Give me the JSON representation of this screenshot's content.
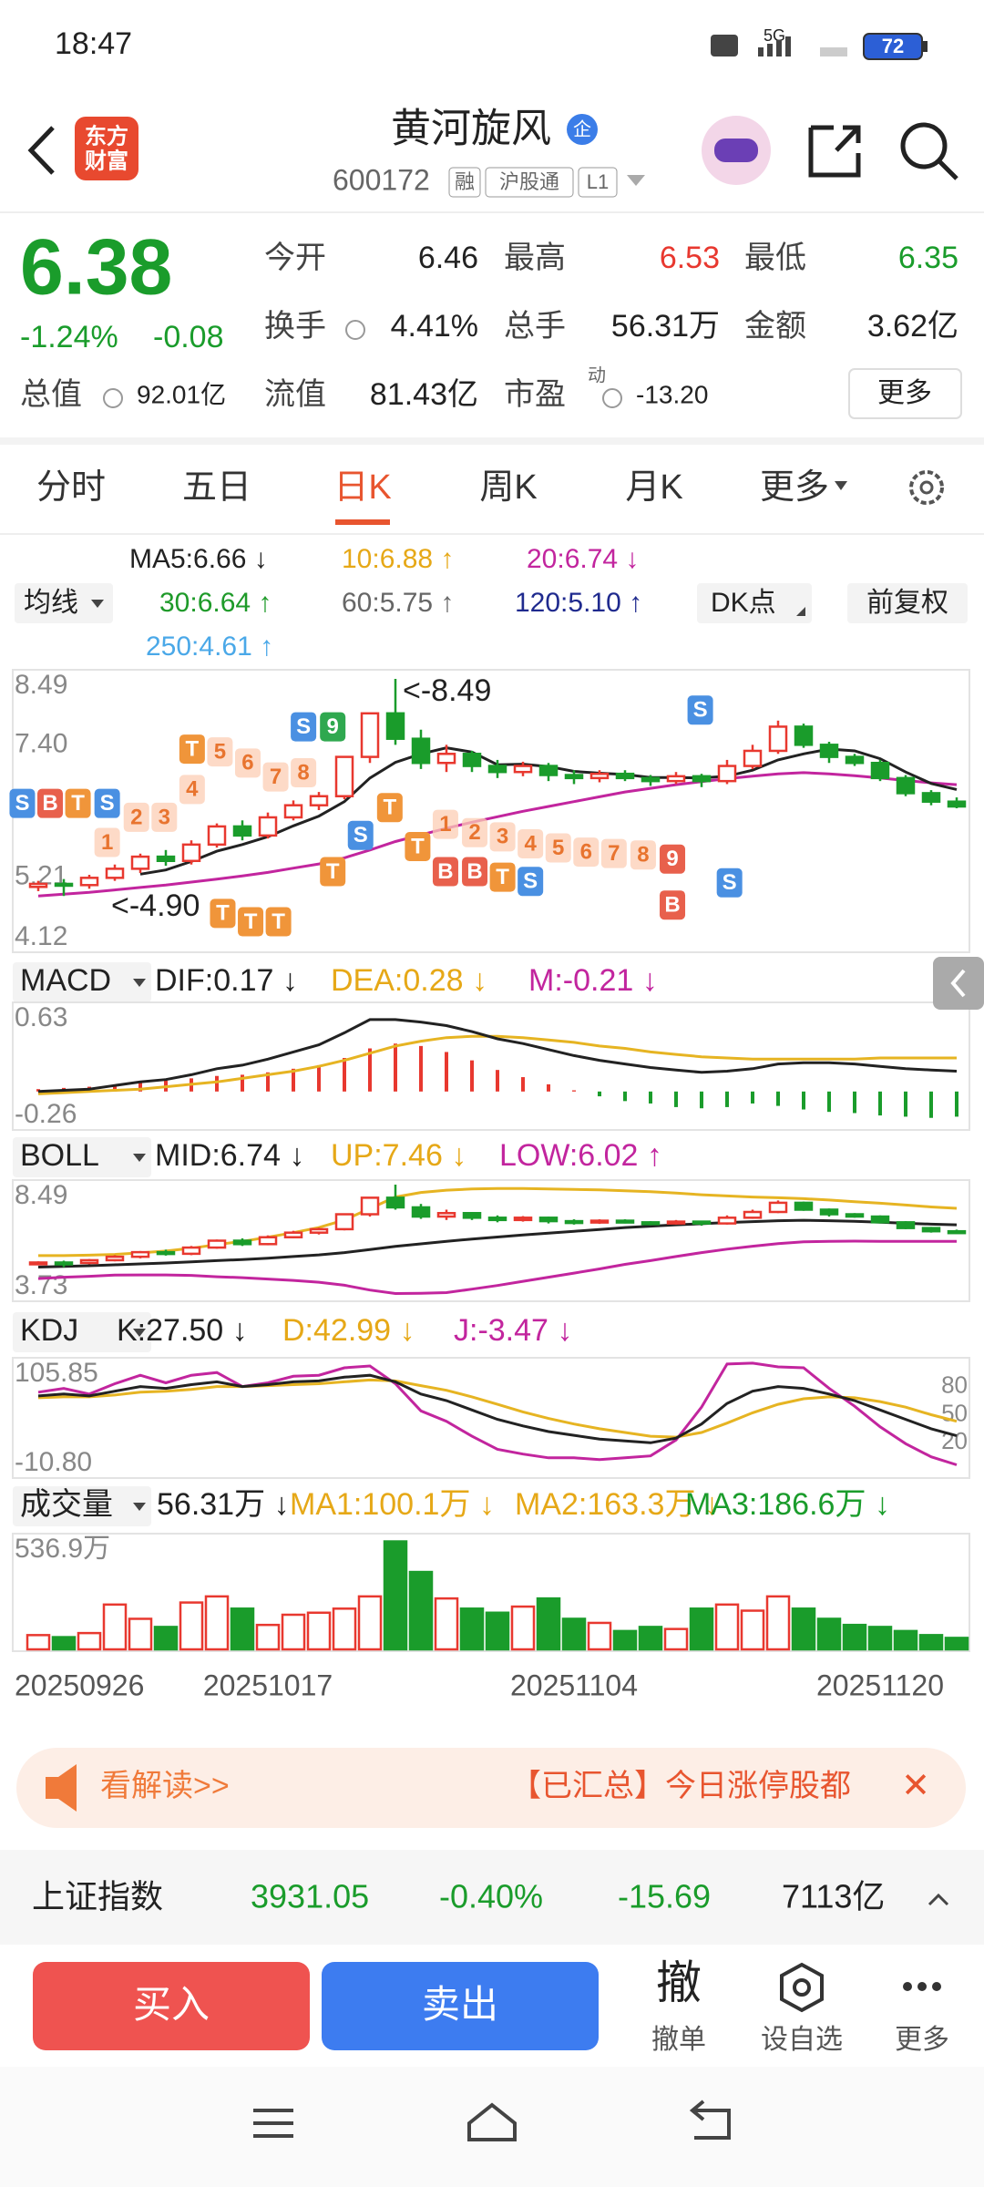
{
  "status": {
    "time": "18:47",
    "network": "5G",
    "battery": "72"
  },
  "header": {
    "logo": [
      "东方",
      "财富"
    ],
    "title": "黄河旋风",
    "badge": "企",
    "code": "600172",
    "tags": [
      "融",
      "沪股通",
      "L1"
    ]
  },
  "quote": {
    "price": "6.38",
    "change_pct": "-1.24%",
    "change": "-0.08",
    "fields": [
      {
        "label": "今开",
        "value": "6.46"
      },
      {
        "label": "最高",
        "value": "6.53"
      },
      {
        "label": "最低",
        "value": "6.35"
      },
      {
        "label": "换手",
        "value": "4.41%"
      },
      {
        "label": "总手",
        "value": "56.31万"
      },
      {
        "label": "金额",
        "value": "3.62亿"
      },
      {
        "label": "总值",
        "value": "92.01亿"
      },
      {
        "label": "流值",
        "value": "81.43亿"
      },
      {
        "label": "市盈",
        "value": "-13.20",
        "sup": "动"
      }
    ],
    "more": "更多"
  },
  "tabs": [
    "分时",
    "五日",
    "日K",
    "周K",
    "月K",
    "更多"
  ],
  "ma_legend": {
    "selector": "均线",
    "items": [
      "MA5:6.66 ↓",
      "10:6.88 ↑",
      "20:6.74 ↓",
      "30:6.64 ↑",
      "60:5.75 ↑",
      "120:5.10 ↑",
      "250:4.61 ↑"
    ],
    "colors": [
      "#222222",
      "#e6a817",
      "#c2259e",
      "#1e9a29",
      "#666666",
      "#1f2a8e",
      "#4aa8e8"
    ],
    "dk": "DK点",
    "adjust": "前复权"
  },
  "kline": {
    "dates": [
      "20250926",
      null,
      null,
      null,
      null,
      null,
      null,
      null,
      null,
      "20251017",
      null,
      null,
      null,
      null,
      null,
      null,
      null,
      null,
      null,
      null,
      null,
      "20251104",
      null,
      null,
      null,
      null,
      null,
      null,
      null,
      null,
      null,
      null,
      null,
      "20251120",
      null,
      null,
      null
    ],
    "ylim": [
      4.12,
      8.49
    ],
    "yticks": [
      8.49,
      {
        "value": 7.4,
        "label": "7.40"
      },
      5.21,
      4.12
    ],
    "up_color": "#e8382f",
    "down_color": "#1a9c2b",
    "candles": [
      [
        5.05,
        5.1,
        4.98,
        5.15
      ],
      [
        5.1,
        5.08,
        4.9,
        5.18
      ],
      [
        5.08,
        5.2,
        5.02,
        5.25
      ],
      [
        5.2,
        5.35,
        5.15,
        5.42
      ],
      [
        5.35,
        5.55,
        5.28,
        5.6
      ],
      [
        5.55,
        5.48,
        5.4,
        5.66
      ],
      [
        5.48,
        5.75,
        5.42,
        5.82
      ],
      [
        5.75,
        6.05,
        5.7,
        6.1
      ],
      [
        6.05,
        5.9,
        5.82,
        6.15
      ],
      [
        5.9,
        6.2,
        5.85,
        6.28
      ],
      [
        6.2,
        6.4,
        6.15,
        6.48
      ],
      [
        6.4,
        6.55,
        6.32,
        6.62
      ],
      [
        6.55,
        7.2,
        6.5,
        7.2
      ],
      [
        7.2,
        7.92,
        7.1,
        7.92
      ],
      [
        7.92,
        7.5,
        7.4,
        8.49
      ],
      [
        7.5,
        7.1,
        7.0,
        7.65
      ],
      [
        7.1,
        7.25,
        6.95,
        7.4
      ],
      [
        7.25,
        7.05,
        6.95,
        7.3
      ],
      [
        7.05,
        6.95,
        6.85,
        7.15
      ],
      [
        6.95,
        7.05,
        6.88,
        7.12
      ],
      [
        7.05,
        6.9,
        6.8,
        7.1
      ],
      [
        6.9,
        6.85,
        6.75,
        6.98
      ],
      [
        6.85,
        6.92,
        6.78,
        6.98
      ],
      [
        6.92,
        6.85,
        6.8,
        6.98
      ],
      [
        6.85,
        6.8,
        6.72,
        6.9
      ],
      [
        6.8,
        6.88,
        6.75,
        6.95
      ],
      [
        6.88,
        6.8,
        6.7,
        6.92
      ],
      [
        6.8,
        7.05,
        6.75,
        7.15
      ],
      [
        7.05,
        7.3,
        7.0,
        7.4
      ],
      [
        7.3,
        7.7,
        7.25,
        7.8
      ],
      [
        7.7,
        7.4,
        7.35,
        7.75
      ],
      [
        7.4,
        7.2,
        7.1,
        7.45
      ],
      [
        7.2,
        7.1,
        7.05,
        7.25
      ],
      [
        7.1,
        6.85,
        6.8,
        7.15
      ],
      [
        6.85,
        6.6,
        6.55,
        6.9
      ],
      [
        6.6,
        6.46,
        6.4,
        6.65
      ],
      [
        6.46,
        6.38,
        6.35,
        6.53
      ]
    ],
    "ma5": {
      "color": "#222222",
      "values": [
        null,
        null,
        null,
        null,
        5.26,
        5.33,
        5.47,
        5.64,
        5.75,
        5.88,
        6.06,
        6.22,
        6.46,
        6.85,
        7.11,
        7.25,
        7.35,
        7.28,
        7.07,
        7.08,
        7.04,
        6.96,
        6.93,
        6.91,
        6.86,
        6.86,
        6.85,
        6.88,
        6.98,
        7.15,
        7.25,
        7.33,
        7.3,
        7.17,
        6.95,
        6.76,
        6.66
      ]
    },
    "ma20": {
      "color": "#c2259e",
      "values": [
        4.9,
        4.93,
        4.96,
        5.0,
        5.04,
        5.08,
        5.13,
        5.18,
        5.23,
        5.29,
        5.36,
        5.43,
        5.53,
        5.66,
        5.8,
        5.91,
        6.02,
        6.12,
        6.21,
        6.3,
        6.38,
        6.46,
        6.54,
        6.62,
        6.68,
        6.74,
        6.79,
        6.84,
        6.88,
        6.92,
        6.94,
        6.92,
        6.89,
        6.85,
        6.81,
        6.77,
        6.74
      ]
    },
    "annotations": [
      "<-8.49",
      "<-4.90"
    ],
    "signals": [
      "S",
      "B",
      "T",
      "S",
      "1",
      "2",
      "3",
      "T",
      "4",
      "5",
      "6",
      "7",
      "8",
      "S",
      "9",
      "T",
      "S",
      "T",
      "T",
      "1",
      "2",
      "3",
      "4",
      "5",
      "6",
      "7",
      "8",
      "9",
      "B",
      "B",
      "T",
      "S",
      "B",
      "S",
      "S",
      "T",
      "T",
      "T"
    ]
  },
  "macd": {
    "header": [
      "MACD",
      "DIF:0.17 ↓",
      "DEA:0.28 ↓",
      "M:-0.21 ↓"
    ],
    "ylim": [
      -0.26,
      0.63
    ],
    "yticks": [
      0.63,
      -0.26
    ],
    "dif": [
      0.0,
      0.01,
      0.02,
      0.05,
      0.08,
      0.1,
      0.14,
      0.19,
      0.22,
      0.27,
      0.33,
      0.39,
      0.49,
      0.6,
      0.6,
      0.58,
      0.55,
      0.5,
      0.44,
      0.4,
      0.35,
      0.3,
      0.26,
      0.23,
      0.2,
      0.18,
      0.16,
      0.17,
      0.19,
      0.23,
      0.24,
      0.24,
      0.23,
      0.21,
      0.19,
      0.18,
      0.17
    ],
    "dea": [
      -0.02,
      -0.01,
      0.0,
      0.01,
      0.02,
      0.04,
      0.06,
      0.08,
      0.11,
      0.14,
      0.17,
      0.21,
      0.26,
      0.32,
      0.38,
      0.42,
      0.45,
      0.46,
      0.46,
      0.45,
      0.43,
      0.41,
      0.38,
      0.36,
      0.33,
      0.31,
      0.29,
      0.28,
      0.27,
      0.27,
      0.27,
      0.27,
      0.27,
      0.28,
      0.28,
      0.28,
      0.28
    ],
    "hist": [
      0.02,
      0.03,
      0.04,
      0.06,
      0.08,
      0.09,
      0.11,
      0.13,
      0.14,
      0.16,
      0.19,
      0.22,
      0.28,
      0.36,
      0.4,
      0.38,
      0.33,
      0.26,
      0.18,
      0.12,
      0.06,
      0.01,
      -0.04,
      -0.08,
      -0.1,
      -0.13,
      -0.14,
      -0.13,
      -0.1,
      -0.12,
      -0.15,
      -0.17,
      -0.18,
      -0.2,
      -0.21,
      -0.22,
      -0.21
    ]
  },
  "boll": {
    "header": [
      "BOLL",
      "MID:6.74 ↓",
      "UP:7.46 ↓",
      "LOW:6.02 ↑"
    ],
    "ylim": [
      3.73,
      8.49
    ],
    "yticks": [
      8.49,
      3.73
    ],
    "up": [
      5.4,
      5.4,
      5.42,
      5.45,
      5.52,
      5.6,
      5.72,
      5.88,
      6.02,
      6.2,
      6.4,
      6.62,
      6.95,
      7.45,
      7.95,
      8.15,
      8.25,
      8.3,
      8.32,
      8.32,
      8.3,
      8.28,
      8.26,
      8.22,
      8.18,
      8.12,
      8.05,
      8.0,
      7.95,
      7.92,
      7.88,
      7.82,
      7.75,
      7.68,
      7.6,
      7.52,
      7.46
    ],
    "low": [
      4.4,
      4.46,
      4.5,
      4.55,
      4.56,
      4.56,
      4.54,
      4.48,
      4.44,
      4.38,
      4.32,
      4.24,
      4.11,
      3.9,
      3.75,
      3.76,
      3.79,
      3.94,
      4.1,
      4.28,
      4.46,
      4.64,
      4.82,
      5.02,
      5.18,
      5.36,
      5.53,
      5.68,
      5.81,
      5.92,
      6.0,
      6.02,
      6.03,
      6.02,
      6.02,
      6.02,
      6.02
    ]
  },
  "kdj": {
    "header": [
      "KDJ",
      "K:27.50 ↓",
      "D:42.99 ↓",
      "J:-3.47 ↓"
    ],
    "ylim": [
      -10.8,
      105.85
    ],
    "yticks": [
      105.85,
      {
        "value": -10.8,
        "label": "-10.80"
      }
    ],
    "right_ticks": [
      80,
      50,
      20
    ],
    "k": [
      70,
      72,
      70,
      75,
      80,
      78,
      82,
      85,
      80,
      82,
      85,
      86,
      90,
      92,
      85,
      72,
      65,
      55,
      45,
      38,
      32,
      28,
      24,
      22,
      20,
      25,
      40,
      62,
      75,
      80,
      78,
      72,
      65,
      55,
      45,
      35,
      27.5
    ],
    "d": [
      68,
      69,
      69,
      71,
      74,
      75,
      77,
      80,
      80,
      81,
      82,
      83,
      85,
      87,
      86,
      81,
      76,
      69,
      61,
      53,
      46,
      40,
      35,
      31,
      27,
      26,
      31,
      41,
      52,
      61,
      67,
      69,
      68,
      64,
      58,
      50,
      42.99
    ],
    "j": [
      74,
      78,
      72,
      83,
      92,
      84,
      92,
      95,
      80,
      84,
      91,
      92,
      100,
      102,
      83,
      54,
      43,
      27,
      13,
      8,
      4,
      4,
      2,
      4,
      6,
      23,
      58,
      104,
      105,
      101,
      100,
      78,
      59,
      37,
      19,
      5,
      -3.47
    ]
  },
  "volume": {
    "header": [
      "成交量",
      "56.31万 ↓",
      "MA1:100.1万 ↓",
      "MA2:163.3万 ↓",
      "MA3:186.6万 ↓"
    ],
    "ylim": [
      0,
      536.9
    ],
    "yticks": [
      {
        "value": 536.9,
        "label": "536.9万"
      }
    ],
    "values": [
      70,
      60,
      80,
      220,
      150,
      110,
      230,
      260,
      200,
      120,
      170,
      180,
      200,
      260,
      530,
      380,
      250,
      200,
      180,
      210,
      250,
      150,
      130,
      90,
      110,
      100,
      200,
      220,
      190,
      260,
      200,
      150,
      120,
      110,
      90,
      70,
      56.31
    ]
  },
  "news": {
    "label": "看解读>>",
    "text": "【已汇总】今日涨停股都",
    "close": "✕"
  },
  "index": {
    "name": "上证指数",
    "price": "3931.05",
    "pct": "-0.40%",
    "change": "-15.69",
    "amount": "7113亿"
  },
  "actions": {
    "buy": "买入",
    "sell": "卖出",
    "items": [
      {
        "icon": "撤",
        "label": "撤单"
      },
      {
        "label": "设自选"
      },
      {
        "label": "更多"
      }
    ]
  }
}
